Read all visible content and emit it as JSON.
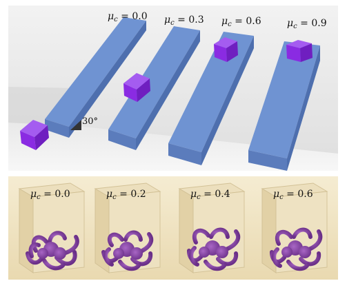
{
  "top_panel": {
    "angle_label": "30°",
    "labels": [
      {
        "mu": "μ",
        "sub": "c",
        "eq": " = 0.0"
      },
      {
        "mu": "μ",
        "sub": "c",
        "eq": " = 0.3"
      },
      {
        "mu": "μ",
        "sub": "c",
        "eq": " = 0.6"
      },
      {
        "mu": "μ",
        "sub": "c",
        "eq": " = 0.9"
      }
    ]
  },
  "bottom_panel": {
    "labels": [
      {
        "mu": "μ",
        "sub": "c",
        "eq": " = 0.0"
      },
      {
        "mu": "μ",
        "sub": "c",
        "eq": " = 0.2"
      },
      {
        "mu": "μ",
        "sub": "c",
        "eq": " = 0.4"
      },
      {
        "mu": "μ",
        "sub": "c",
        "eq": " = 0.6"
      }
    ]
  },
  "colors": {
    "ramp": "#6b8fce",
    "ramp_dark": "#4e6fae",
    "cube": "#8a2be2",
    "octopus": "#7a3f9a",
    "bottom_bg": "#f2e6c8"
  }
}
